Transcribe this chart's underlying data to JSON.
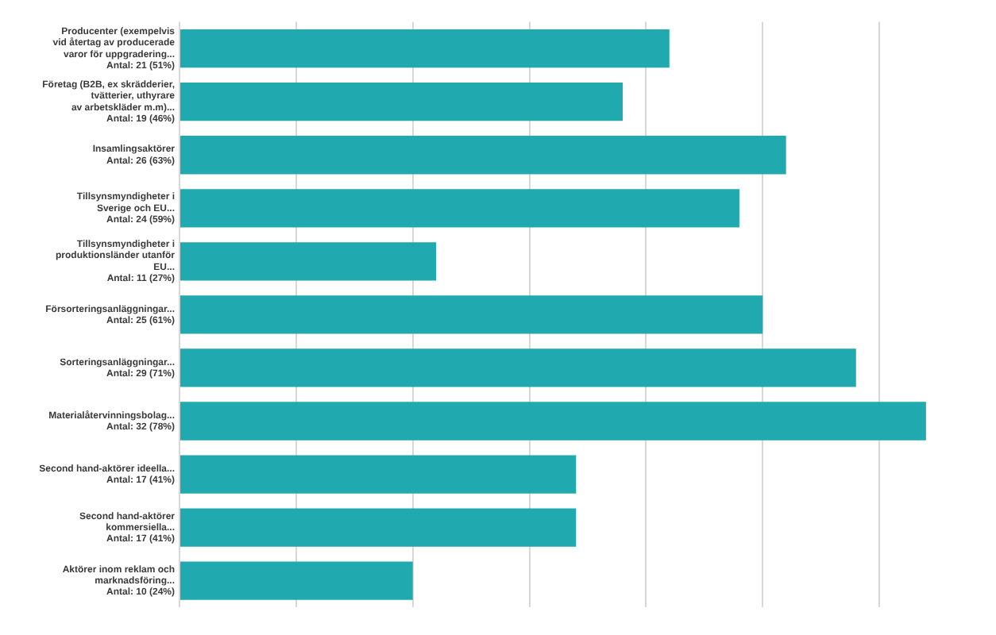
{
  "chart_data": {
    "type": "bar",
    "orientation": "horizontal",
    "categories": [
      "Producenter (exempelvis\nvid återtag av producerade\nvaror för uppgradering...",
      "Företag (B2B, ex skrädderier,\ntvätterier, uthyrare\nav arbetskläder m.m)...",
      "Insamlingsaktörer",
      "Tillsynsmyndigheter i\nSverige och EU...",
      "Tillsynsmyndigheter i\nproduktionsländer utanför\nEU...",
      "Försorteringsanläggningar...",
      "Sorteringsanläggningar...",
      "Materialåtervinningsbolag...",
      "Second hand-aktörer ideella...",
      "Second hand-aktörer\nkommersiella...",
      "Aktörer inom reklam och\nmarknadsföring..."
    ],
    "values": [
      21,
      19,
      26,
      24,
      11,
      25,
      29,
      32,
      17,
      17,
      10
    ],
    "value_labels": [
      "Antal: 21 (51%)",
      "Antal: 19 (46%)",
      "Antal: 26 (63%)",
      "Antal: 24 (59%)",
      "Antal: 11 (27%)",
      "Antal: 25 (61%)",
      "Antal: 29 (71%)",
      "Antal: 32 (78%)",
      "Antal: 17 (41%)",
      "Antal: 17 (41%)",
      "Antal: 10 (24%)"
    ],
    "color": "#21a9b0",
    "xlim": [
      0,
      35
    ],
    "xticks": [
      {
        "value": 0,
        "label": null
      },
      {
        "value": 5,
        "label": null
      },
      {
        "value": 10,
        "label": null
      },
      {
        "value": 15,
        "label": null
      },
      {
        "value": 20,
        "label": null
      },
      {
        "value": 25,
        "label": null
      },
      {
        "value": 30,
        "label": null
      }
    ],
    "grid": "x",
    "tick_labels": "y"
  }
}
